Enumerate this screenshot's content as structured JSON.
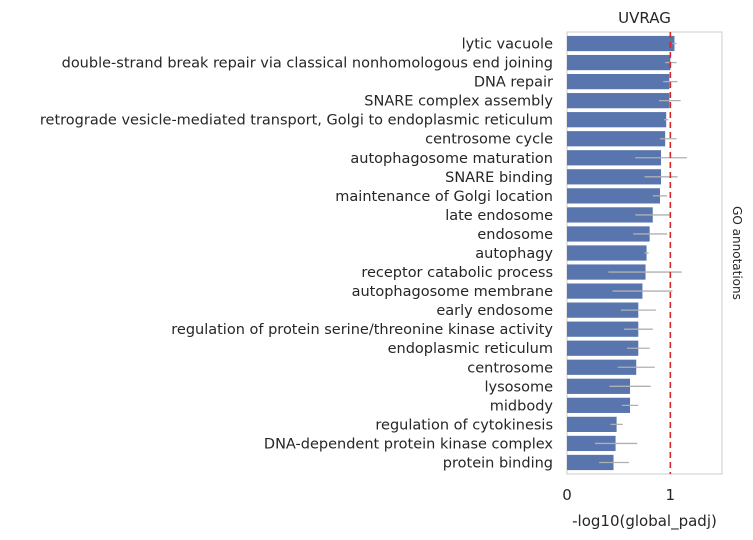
{
  "chart_data": {
    "type": "bar",
    "orientation": "horizontal",
    "title": "UVRAG",
    "xlabel": "-log10(global_padj)",
    "side_label": "GO annotations",
    "xlim": [
      0,
      1.5
    ],
    "xticks": [
      0,
      1
    ],
    "threshold_line": 1.0,
    "grid": false,
    "bar_color": "#5875ad",
    "errorbar_color": "#b0b0b0",
    "threshold_color": "#d62728",
    "categories": [
      "lytic vacuole",
      "double-strand break repair via classical nonhomologous end joining",
      "DNA repair",
      "SNARE complex assembly",
      "retrograde vesicle-mediated transport, Golgi to endoplasmic reticulum",
      "centrosome cycle",
      "autophagosome maturation",
      "SNARE binding",
      "maintenance of Golgi location",
      "late endosome",
      "endosome",
      "autophagy",
      "receptor catabolic process",
      "autophagosome membrane",
      "early endosome",
      "regulation of protein serine/threonine kinase activity",
      "endoplasmic reticulum",
      "centrosome",
      "lysosome",
      "midbody",
      "regulation of cytokinesis",
      "DNA-dependent protein kinase complex",
      "protein binding"
    ],
    "values": [
      1.04,
      1.0,
      0.99,
      0.99,
      0.96,
      0.95,
      0.91,
      0.91,
      0.9,
      0.83,
      0.8,
      0.77,
      0.76,
      0.73,
      0.69,
      0.69,
      0.69,
      0.67,
      0.61,
      0.61,
      0.48,
      0.47,
      0.45
    ],
    "error_low": [
      1.02,
      0.95,
      0.93,
      0.89,
      0.94,
      0.9,
      0.66,
      0.75,
      0.83,
      0.66,
      0.64,
      0.75,
      0.4,
      0.44,
      0.52,
      0.55,
      0.58,
      0.49,
      0.41,
      0.53,
      0.42,
      0.27,
      0.31
    ],
    "error_high": [
      1.06,
      1.06,
      1.07,
      1.1,
      0.98,
      1.06,
      1.16,
      1.07,
      0.97,
      1.0,
      0.97,
      0.79,
      1.11,
      1.02,
      0.86,
      0.83,
      0.8,
      0.85,
      0.81,
      0.69,
      0.54,
      0.68,
      0.6
    ]
  }
}
